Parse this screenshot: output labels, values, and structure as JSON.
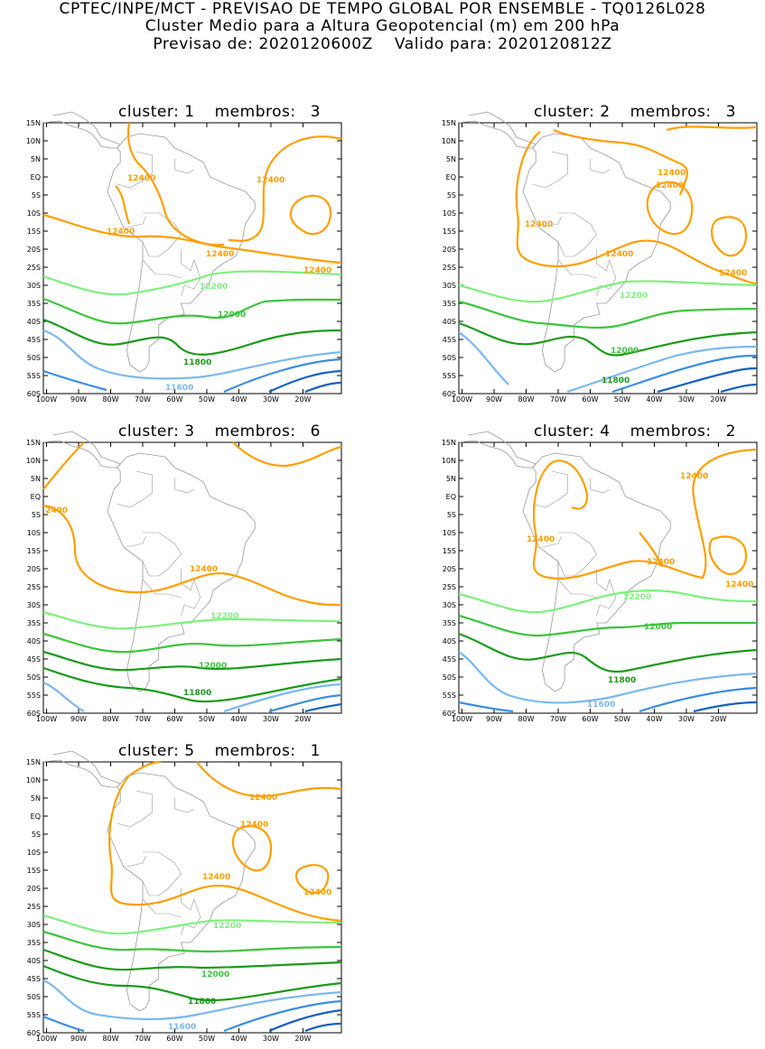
{
  "header": {
    "line1": "CPTEC/INPE/MCT - PREVISAO DE TEMPO GLOBAL POR ENSEMBLE - TQ0126L028",
    "line2": "Cluster Medio para a Altura Geopotencial (m) em 200 hPa",
    "line3_left": "Previsao de: 2020120600Z",
    "line3_right": "Valido para: 2020120812Z"
  },
  "lat_ticks": [
    "15N",
    "10N",
    "5N",
    "EQ",
    "5S",
    "10S",
    "15S",
    "20S",
    "25S",
    "30S",
    "35S",
    "40S",
    "45S",
    "50S",
    "55S",
    "60S"
  ],
  "lon_ticks": [
    "100W",
    "90W",
    "80W",
    "70W",
    "60W",
    "50W",
    "40W",
    "30W",
    "20W"
  ],
  "colors": {
    "c12400": "#ff9f00",
    "c12200": "#7ef07e",
    "c12000": "#3cc43c",
    "c11800": "#1a9a1a",
    "c11600": "#7ab8f0",
    "c11400": "#3a8ee0",
    "c11200": "#1560c0",
    "land": "#9a9a9a"
  },
  "panels": [
    {
      "title_cluster": "cluster:",
      "cluster": "1",
      "title_members": "membros:",
      "members": "3",
      "labels": {
        "a": "12400",
        "b": "12400",
        "c": "12400",
        "d": "12400",
        "e": "12400",
        "f": "12200",
        "g": "12000",
        "h": "11800",
        "i": "11600"
      }
    },
    {
      "title_cluster": "cluster:",
      "cluster": "2",
      "title_members": "membros:",
      "members": "3",
      "labels": {
        "a": "12400",
        "b": "12400",
        "c": "12400",
        "d": "12400",
        "e": "12400",
        "f": "12200",
        "g": "12000",
        "h": "11800"
      }
    },
    {
      "title_cluster": "cluster:",
      "cluster": "3",
      "title_members": "membros:",
      "members": "6",
      "labels": {
        "a": "2400",
        "b": "12400",
        "c": "12200",
        "d": "12000",
        "e": "11800"
      }
    },
    {
      "title_cluster": "cluster:",
      "cluster": "4",
      "title_members": "membros:",
      "members": "2",
      "labels": {
        "a": "12400",
        "b": "12400",
        "c": "12400",
        "d": "12400",
        "e": "12200",
        "f": "12000",
        "g": "11800",
        "h": "11600"
      }
    },
    {
      "title_cluster": "cluster:",
      "cluster": "5",
      "title_members": "membros:",
      "members": "1",
      "labels": {
        "a": "12400",
        "b": "12400",
        "c": "12400",
        "d": "12400",
        "e": "12200",
        "f": "12000",
        "g": "11800",
        "h": "11600"
      }
    }
  ]
}
